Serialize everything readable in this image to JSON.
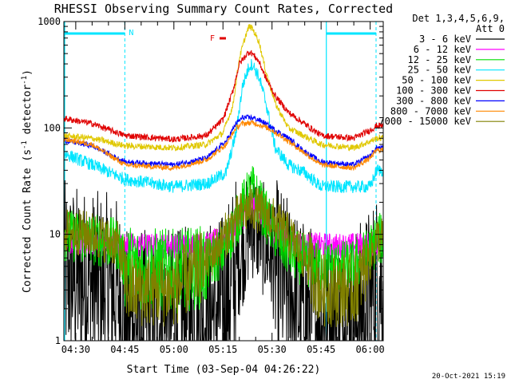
{
  "chart_data": {
    "type": "line",
    "title": "RHESSI Observing Summary Count Rates, Corrected",
    "xlabel": "Start Time (03-Sep-04 04:26:22)",
    "ylabel": "Corrected Count Rate (s⁻¹ detector⁻¹)",
    "ylabel_parts": [
      "Corrected Count Rate (s",
      "-1",
      " detector",
      "-1",
      ")"
    ],
    "yscale": "log",
    "ylim": [
      1,
      1000
    ],
    "xlim": [
      "04:26",
      "06:04"
    ],
    "x_ticks": [
      {
        "label": "04:30",
        "min": 270
      },
      {
        "label": "04:45",
        "min": 285
      },
      {
        "label": "05:00",
        "min": 300
      },
      {
        "label": "05:15",
        "min": 315
      },
      {
        "label": "05:30",
        "min": 330
      },
      {
        "label": "05:45",
        "min": 345
      },
      {
        "label": "06:00",
        "min": 360
      }
    ],
    "y_ticks": [
      {
        "label": "1",
        "value": 1
      },
      {
        "label": "10",
        "value": 10
      },
      {
        "label": "100",
        "value": 100
      },
      {
        "label": "1000",
        "value": 1000
      }
    ],
    "legend_position": "right",
    "legend_header": [
      "Det 1,3,4,5,6,9,",
      "Att 0"
    ],
    "footer_timestamp": "20-Oct-2021 15:19",
    "flags": [
      {
        "label": "N",
        "color": "#00e5ff"
      },
      {
        "label": "F",
        "color": "#e00000"
      }
    ],
    "series": [
      {
        "name": "3 - 6 keV",
        "color": "#000000",
        "x": [
          265,
          275,
          280,
          283,
          285,
          300,
          310,
          314,
          316,
          318,
          320,
          322,
          323,
          324,
          326,
          328,
          330,
          332,
          335,
          340,
          345,
          355,
          360,
          362
        ],
        "values": [
          4.5,
          3.5,
          3.3,
          3.0,
          1.5,
          1.5,
          1.8,
          2.0,
          2.5,
          4.0,
          6.0,
          9.0,
          12,
          13,
          11,
          8.0,
          6.0,
          4.0,
          3.0,
          1.8,
          1.5,
          1.5,
          2.5,
          3.5
        ]
      },
      {
        "name": "6 - 12 keV",
        "color": "#ff00ff",
        "x": [
          265,
          275,
          285,
          300,
          310,
          316,
          320,
          323,
          324,
          327,
          330,
          335,
          340,
          350,
          360,
          362
        ],
        "values": [
          8.5,
          8.3,
          7.8,
          7.8,
          7.9,
          9.5,
          13,
          17,
          19,
          15,
          11,
          9.0,
          8.0,
          7.8,
          8.0,
          8.2
        ]
      },
      {
        "name": "12 - 25 keV",
        "color": "#00dd00",
        "x": [
          265,
          275,
          283,
          285,
          300,
          310,
          315,
          318,
          321,
          323,
          324,
          326,
          329,
          333,
          338,
          345,
          355,
          360,
          362
        ],
        "values": [
          10,
          9.0,
          8.0,
          5.0,
          4.5,
          5.0,
          7.0,
          11,
          18,
          24,
          26,
          20,
          13,
          8.0,
          6.0,
          5.0,
          5.0,
          7.0,
          9.0
        ]
      },
      {
        "name": "25 - 50 keV",
        "color": "#00e5ff",
        "x": [
          265,
          275,
          285,
          300,
          310,
          316,
          319,
          321,
          323,
          324,
          326,
          328,
          331,
          335,
          340,
          345,
          360,
          362
        ],
        "values": [
          60,
          45,
          33,
          28,
          30,
          38,
          90,
          250,
          380,
          400,
          300,
          180,
          65,
          45,
          38,
          28,
          28,
          40
        ]
      },
      {
        "name": "50 - 100 keV",
        "color": "#e0c800",
        "x": [
          265,
          275,
          285,
          300,
          310,
          315,
          318,
          320,
          322,
          323,
          324,
          326,
          328,
          331,
          335,
          345,
          355,
          360,
          362
        ],
        "values": [
          85,
          80,
          68,
          65,
          70,
          90,
          160,
          450,
          750,
          900,
          860,
          650,
          350,
          170,
          100,
          70,
          65,
          75,
          80
        ]
      },
      {
        "name": "100 - 300 keV",
        "color": "#e00000",
        "x": [
          265,
          275,
          285,
          300,
          310,
          315,
          318,
          320,
          322,
          323,
          324,
          326,
          328,
          331,
          335,
          345,
          355,
          360,
          362
        ],
        "values": [
          125,
          110,
          85,
          78,
          85,
          120,
          220,
          400,
          480,
          520,
          500,
          420,
          300,
          200,
          140,
          85,
          80,
          95,
          105
        ]
      },
      {
        "name": "300 - 800 keV",
        "color": "#0000ff",
        "x": [
          265,
          275,
          285,
          300,
          310,
          316,
          319,
          321,
          324,
          327,
          330,
          335,
          340,
          345,
          355,
          360,
          362
        ],
        "values": [
          78,
          68,
          48,
          45,
          52,
          75,
          110,
          125,
          125,
          115,
          100,
          80,
          60,
          48,
          45,
          55,
          65
        ]
      },
      {
        "name": "800 - 7000 keV",
        "color": "#ff8800",
        "x": [
          265,
          275,
          285,
          300,
          310,
          316,
          319,
          321,
          324,
          327,
          330,
          335,
          340,
          345,
          355,
          360,
          362
        ],
        "values": [
          80,
          70,
          45,
          42,
          50,
          70,
          100,
          110,
          112,
          105,
          95,
          75,
          58,
          45,
          42,
          52,
          62
        ]
      },
      {
        "name": "7000 - 15000 keV",
        "color": "#808000",
        "x": [
          265,
          275,
          283,
          286,
          300,
          310,
          316,
          320,
          323,
          324,
          327,
          331,
          336,
          340,
          345,
          355,
          360,
          362
        ],
        "values": [
          11,
          10,
          8.0,
          3.0,
          3.0,
          5.5,
          10,
          15,
          17.5,
          18,
          16,
          13,
          9.0,
          6.0,
          3.0,
          3.0,
          6.0,
          9.0
        ]
      }
    ]
  }
}
